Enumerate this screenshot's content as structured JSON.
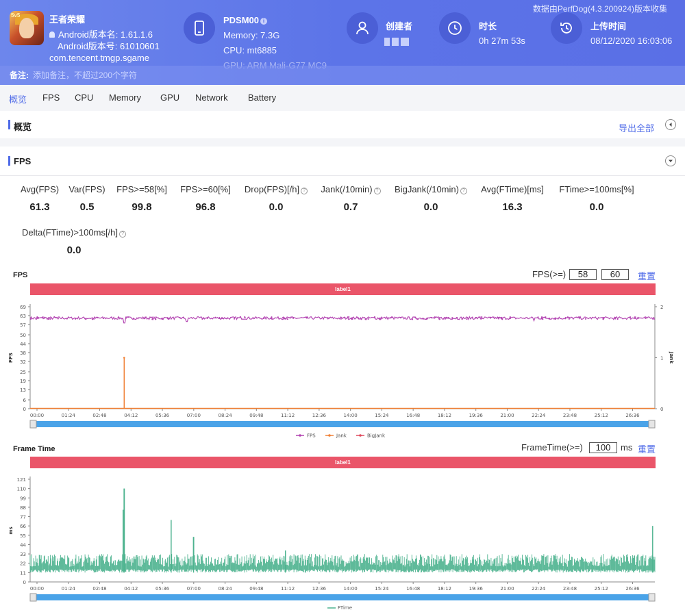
{
  "header": {
    "source_note": "数据由PerfDog(4.3.200924)版本收集",
    "app": {
      "name": "王者荣耀",
      "version_name": "Android版本名: 1.61.1.6",
      "version_code": "Android版本号: 61010601",
      "package": "com.tencent.tmgp.sgame",
      "icon": "game-app-icon",
      "icon_tag": "5v5"
    },
    "device": {
      "name": "PDSM00",
      "memory": "Memory: 7.3G",
      "cpu": "CPU: mt6885",
      "gpu": "GPU: ARM Mali-G77 MC9",
      "icon": "phone-icon"
    },
    "creator": {
      "title": "创建者",
      "icon": "user-icon"
    },
    "duration": {
      "title": "时长",
      "value": "0h 27m 53s",
      "icon": "clock-icon"
    },
    "upload": {
      "title": "上传时间",
      "value": "08/12/2020 16:03:06",
      "icon": "history-icon"
    },
    "note": {
      "label": "备注:",
      "placeholder": "添加备注，不超过200个字符"
    }
  },
  "tabs": [
    "概览",
    "FPS",
    "CPU",
    "Memory",
    "GPU",
    "Network",
    "Battery"
  ],
  "active_tab": "概览",
  "overview": {
    "title": "概览",
    "export_label": "导出全部"
  },
  "fps_panel": {
    "title": "FPS",
    "metrics": [
      {
        "label": "Avg(FPS)",
        "value": "61.3"
      },
      {
        "label": "Var(FPS)",
        "value": "0.5"
      },
      {
        "label": "FPS>=58[%]",
        "value": "99.8"
      },
      {
        "label": "FPS>=60[%]",
        "value": "96.8"
      },
      {
        "label": "Drop(FPS)[/h]",
        "value": "0.0"
      },
      {
        "label": "Jank(/10min)",
        "value": "0.7"
      },
      {
        "label": "BigJank(/10min)",
        "value": "0.0"
      },
      {
        "label": "Avg(FTime)[ms]",
        "value": "16.3"
      },
      {
        "label": "FTime>=100ms[%]",
        "value": "0.0"
      },
      {
        "label": "Delta(FTime)>100ms[/h]",
        "value": "0.0"
      }
    ],
    "help_icon": "?",
    "fps_chart_controls": {
      "title": "FPS",
      "label": "FPS(>=)",
      "value1": "58",
      "value2": "60",
      "reset": "重置",
      "segment_label": "label1"
    },
    "ftime_chart_controls": {
      "title": "Frame Time",
      "label": "FrameTime(>=)",
      "value": "100",
      "unit": "ms",
      "reset": "重置",
      "segment_label": "label1"
    }
  },
  "chart_data": [
    {
      "type": "line",
      "title": "FPS",
      "ylabel": "FPS",
      "y2label": "Jank",
      "x_ticks": [
        "00:00",
        "01:24",
        "02:48",
        "04:12",
        "05:36",
        "07:00",
        "08:24",
        "09:48",
        "11:12",
        "12:36",
        "14:00",
        "15:24",
        "16:48",
        "18:12",
        "19:36",
        "21:00",
        "22:24",
        "23:48",
        "25:12",
        "26:36"
      ],
      "y_ticks": [
        0,
        6,
        13,
        19,
        25,
        32,
        38,
        44,
        50,
        57,
        63,
        69
      ],
      "ylim": [
        0,
        69
      ],
      "y2_ticks": [
        0,
        1,
        2
      ],
      "y2lim": [
        0,
        2
      ],
      "series": [
        {
          "name": "FPS",
          "color": "#b447b3",
          "baseline": 61.3,
          "dips": [
            [
              4.2,
              58
            ],
            [
              7.0,
              59
            ],
            [
              22.5,
              59.5
            ]
          ]
        },
        {
          "name": "Jank",
          "color": "#f08035",
          "axis": "right",
          "spikes": [
            [
              4.2,
              1
            ]
          ]
        },
        {
          "name": "BigJank",
          "color": "#e04a5d",
          "axis": "right",
          "spikes": []
        }
      ],
      "xlim_minutes": [
        0,
        27.9
      ]
    },
    {
      "type": "line",
      "title": "Frame Time",
      "ylabel": "ms",
      "x_ticks": [
        "00:00",
        "01:24",
        "02:48",
        "04:12",
        "05:36",
        "07:00",
        "08:24",
        "09:48",
        "11:12",
        "12:36",
        "14:00",
        "15:24",
        "16:48",
        "18:12",
        "19:36",
        "21:00",
        "22:24",
        "23:48",
        "25:12",
        "26:36"
      ],
      "y_ticks": [
        0,
        11,
        22,
        33,
        44,
        55,
        66,
        77,
        88,
        99,
        110,
        121
      ],
      "ylim": [
        0,
        121
      ],
      "series": [
        {
          "name": "FTime",
          "color": "#4db38f",
          "baseline": 16.3,
          "spikes": [
            [
              4.2,
              110
            ],
            [
              4.15,
              85
            ],
            [
              6.3,
              73
            ],
            [
              7.3,
              53
            ],
            [
              11.4,
              37
            ],
            [
              27.8,
              66
            ]
          ]
        }
      ],
      "xlim_minutes": [
        0,
        27.9
      ]
    }
  ]
}
